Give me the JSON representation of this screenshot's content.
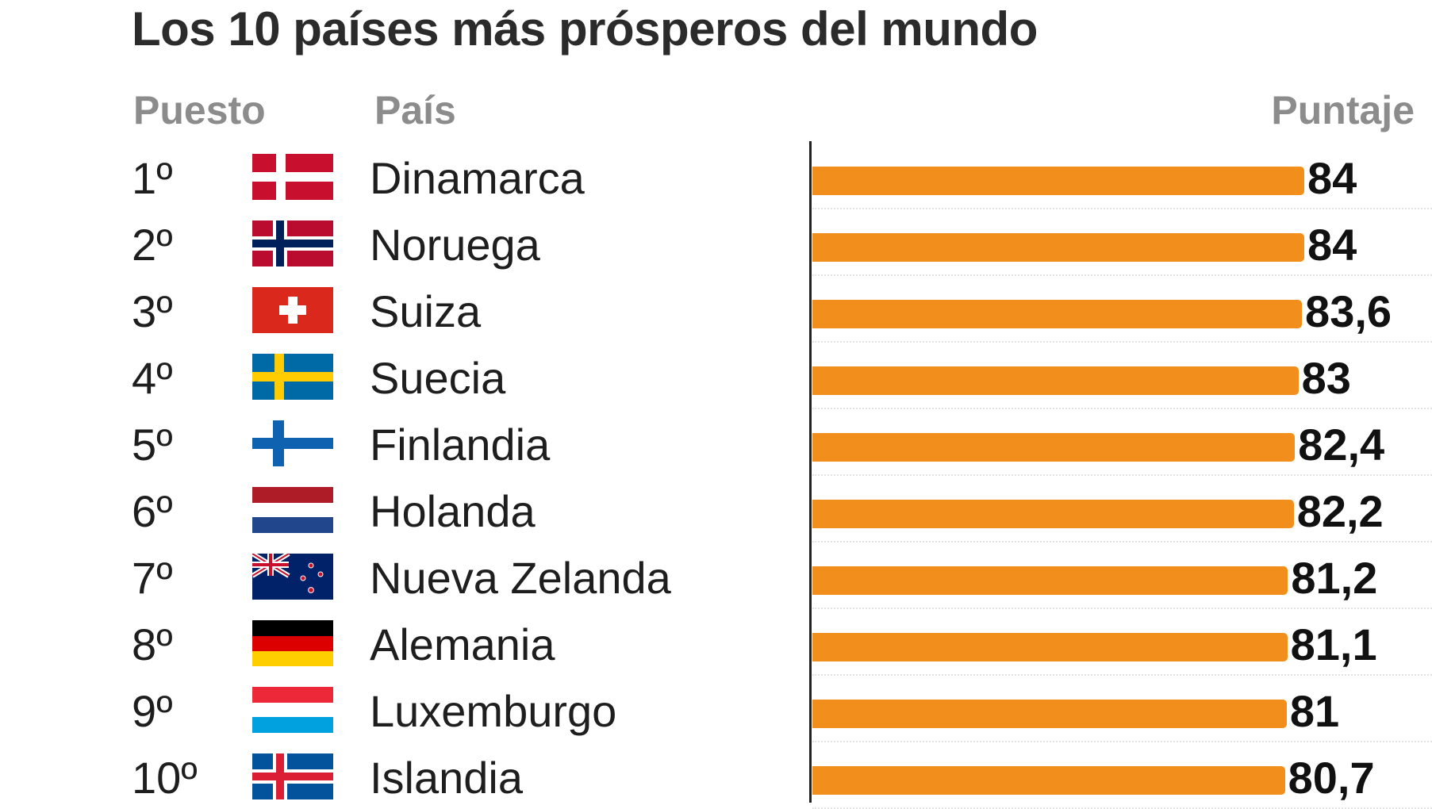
{
  "title": "Los 10 países más prósperos del mundo",
  "headers": {
    "rank": "Puesto",
    "country": "País",
    "score": "Puntaje"
  },
  "colors": {
    "bar": "#f28e1c",
    "axis": "#222222",
    "header": "#8c8c8c"
  },
  "chart_data": {
    "type": "bar",
    "orientation": "horizontal",
    "title": "Los 10 países más prósperos del mundo",
    "categories": [
      "Dinamarca",
      "Noruega",
      "Suiza",
      "Suecia",
      "Finlandia",
      "Holanda",
      "Nueva Zelanda",
      "Alemania",
      "Luxemburgo",
      "Islandia"
    ],
    "values": [
      84,
      84,
      83.6,
      83,
      82.4,
      82.2,
      81.2,
      81.1,
      81,
      80.7
    ],
    "grid": false
  },
  "rows": [
    {
      "rank": "1º",
      "country": "Dinamarca",
      "flag": "denmark-flag-icon",
      "value": "84"
    },
    {
      "rank": "2º",
      "country": "Noruega",
      "flag": "norway-flag-icon",
      "value": "84"
    },
    {
      "rank": "3º",
      "country": "Suiza",
      "flag": "switzerland-flag-icon",
      "value": "83,6"
    },
    {
      "rank": "4º",
      "country": "Suecia",
      "flag": "sweden-flag-icon",
      "value": "83"
    },
    {
      "rank": "5º",
      "country": "Finlandia",
      "flag": "finland-flag-icon",
      "value": "82,4"
    },
    {
      "rank": "6º",
      "country": "Holanda",
      "flag": "netherlands-flag-icon",
      "value": "82,2"
    },
    {
      "rank": "7º",
      "country": "Nueva Zelanda",
      "flag": "new-zealand-flag-icon",
      "value": "81,2"
    },
    {
      "rank": "8º",
      "country": "Alemania",
      "flag": "germany-flag-icon",
      "value": "81,1"
    },
    {
      "rank": "9º",
      "country": "Luxemburgo",
      "flag": "luxembourg-flag-icon",
      "value": "81"
    },
    {
      "rank": "10º",
      "country": "Islandia",
      "flag": "iceland-flag-icon",
      "value": "80,7"
    }
  ]
}
